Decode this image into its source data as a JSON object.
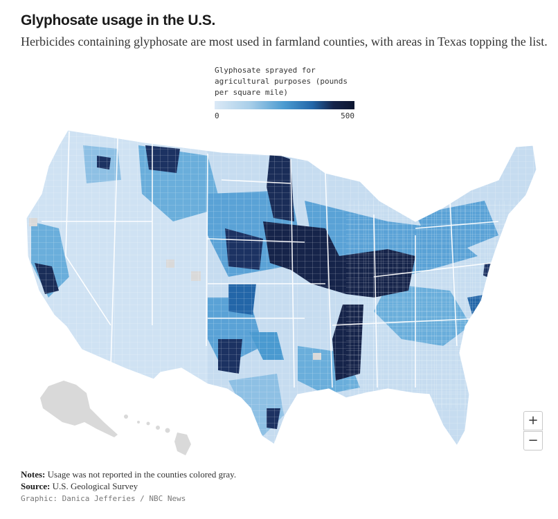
{
  "title": "Glyphosate usage in the U.S.",
  "subtitle": "Herbicides containing glyphosate are most used in farmland counties, with areas in Texas topping the list.",
  "legend": {
    "title": "Glyphosate sprayed for\nagricultural purposes (pounds\nper square mile)",
    "min_label": "0",
    "max_label": "500",
    "scale_colors": [
      "#dbe9f6",
      "#a9cfe9",
      "#4a9ad0",
      "#2366a8",
      "#16244a",
      "#0c1530"
    ],
    "no_data_color": "#d9d9d9"
  },
  "map": {
    "region": "Contiguous United States, Alaska and Hawaii by county",
    "high_usage_areas": [
      "Corn Belt (Iowa, Illinois, Indiana, Ohio)",
      "Red River Valley (North Dakota / Minnesota)",
      "Mississippi Delta",
      "Texas Panhandle and Gulf Coast",
      "Central Valley, California"
    ]
  },
  "zoom": {
    "in_label": "+",
    "out_label": "−"
  },
  "notes": {
    "notes_label": "Notes:",
    "notes_text": " Usage was not reported in the counties colored gray.",
    "source_label": "Source:",
    "source_text": " U.S. Geological Survey"
  },
  "credit": "Graphic: Danica Jefferies / NBC News"
}
